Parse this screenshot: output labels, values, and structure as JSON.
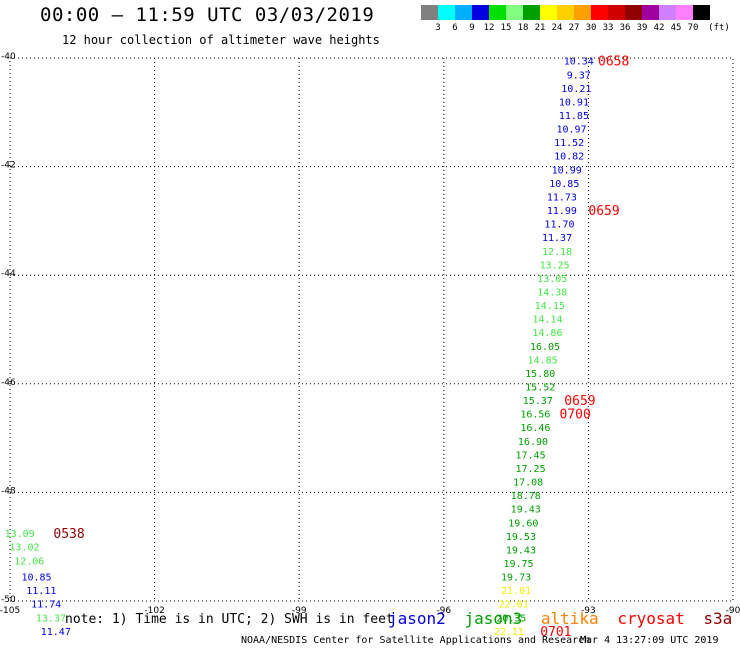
{
  "header": {
    "title": "00:00 – 11:59 UTC 03/03/2019",
    "subtitle": "12 hour collection of altimeter wave heights"
  },
  "color_scale": {
    "ticks": [
      "3",
      "6",
      "9",
      "12",
      "15",
      "18",
      "21",
      "24",
      "27",
      "30",
      "33",
      "36",
      "39",
      "42",
      "45",
      "70"
    ],
    "unit": "(ft)",
    "colors": [
      "#808080",
      "#00ffff",
      "#00b0ff",
      "#0000e0",
      "#00e000",
      "#80ff80",
      "#00a000",
      "#ffff00",
      "#ffd000",
      "#ffa000",
      "#ff0000",
      "#d00000",
      "#900000",
      "#a000a0",
      "#d080ff",
      "#ff80ff",
      "#000000"
    ]
  },
  "footer": {
    "note": "note: 1) Time is in UTC; 2) SWH is in feet",
    "satellites": [
      {
        "name": "jason2",
        "color": "#0000e0"
      },
      {
        "name": "jason3",
        "color": "#00a000"
      },
      {
        "name": "altika",
        "color": "#ff8000"
      },
      {
        "name": "cryosat",
        "color": "#ff0000"
      },
      {
        "name": "s3a",
        "color": "#900000"
      }
    ],
    "credit": "NOAA/NESDIS Center for Satellite Applications and Research",
    "timestamp": "Mar 4 13:27:09 UTC 2019"
  },
  "chart_data": {
    "type": "scatter",
    "title": "00:00 – 11:59 UTC 03/03/2019",
    "xlim": [
      -105,
      -90
    ],
    "ylim": [
      -50,
      -40
    ],
    "x_ticks": [
      -105,
      -102,
      -99,
      -96,
      -93,
      -90
    ],
    "y_ticks": [
      -40,
      -42,
      -44,
      -46,
      -48,
      -50
    ],
    "grid": true,
    "colors": {
      "green": "#00a000",
      "light_green": "#44e844",
      "blue": "#0000e0",
      "yellow": "#f0f000",
      "red": "#ff0000",
      "dark_red": "#900000"
    },
    "points": [
      {
        "x": -93.2,
        "y": -40.05,
        "label": "10.34",
        "color": "blue"
      },
      {
        "x": -93.2,
        "y": -40.3,
        "label": "9.37",
        "color": "blue"
      },
      {
        "x": -93.25,
        "y": -40.55,
        "label": "10.21",
        "color": "blue"
      },
      {
        "x": -93.3,
        "y": -40.8,
        "label": "10.91",
        "color": "blue"
      },
      {
        "x": -93.3,
        "y": -41.05,
        "label": "11.85",
        "color": "blue"
      },
      {
        "x": -93.35,
        "y": -41.3,
        "label": "10.97",
        "color": "blue"
      },
      {
        "x": -93.4,
        "y": -41.55,
        "label": "11.52",
        "color": "blue"
      },
      {
        "x": -93.4,
        "y": -41.8,
        "label": "10.82",
        "color": "blue"
      },
      {
        "x": -93.45,
        "y": -42.05,
        "label": "10.99",
        "color": "blue"
      },
      {
        "x": -93.5,
        "y": -42.3,
        "label": "10.85",
        "color": "blue"
      },
      {
        "x": -93.55,
        "y": -42.55,
        "label": "11.73",
        "color": "blue"
      },
      {
        "x": -93.55,
        "y": -42.8,
        "label": "11.99",
        "color": "blue"
      },
      {
        "x": -93.6,
        "y": -43.05,
        "label": "11.70",
        "color": "blue"
      },
      {
        "x": -93.65,
        "y": -43.3,
        "label": "11.37",
        "color": "blue"
      },
      {
        "x": -93.65,
        "y": -43.55,
        "label": "12.18",
        "color": "light_green"
      },
      {
        "x": -93.7,
        "y": -43.8,
        "label": "13.25",
        "color": "light_green"
      },
      {
        "x": -93.75,
        "y": -44.05,
        "label": "13.05",
        "color": "light_green"
      },
      {
        "x": -93.75,
        "y": -44.3,
        "label": "14.38",
        "color": "light_green"
      },
      {
        "x": -93.8,
        "y": -44.55,
        "label": "14.15",
        "color": "light_green"
      },
      {
        "x": -93.85,
        "y": -44.8,
        "label": "14.14",
        "color": "light_green"
      },
      {
        "x": -93.85,
        "y": -45.05,
        "label": "14.86",
        "color": "light_green"
      },
      {
        "x": -93.9,
        "y": -45.3,
        "label": "16.05",
        "color": "green"
      },
      {
        "x": -93.95,
        "y": -45.55,
        "label": "14.85",
        "color": "light_green"
      },
      {
        "x": -94.0,
        "y": -45.8,
        "label": "15.80",
        "color": "green"
      },
      {
        "x": -94.0,
        "y": -46.05,
        "label": "15.52",
        "color": "green"
      },
      {
        "x": -94.05,
        "y": -46.3,
        "label": "15.37",
        "color": "green"
      },
      {
        "x": -94.1,
        "y": -46.55,
        "label": "16.56",
        "color": "green"
      },
      {
        "x": -94.1,
        "y": -46.8,
        "label": "16.46",
        "color": "green"
      },
      {
        "x": -94.15,
        "y": -47.05,
        "label": "16.90",
        "color": "green"
      },
      {
        "x": -94.2,
        "y": -47.3,
        "label": "17.45",
        "color": "green"
      },
      {
        "x": -94.2,
        "y": -47.55,
        "label": "17.25",
        "color": "green"
      },
      {
        "x": -94.25,
        "y": -47.8,
        "label": "17.08",
        "color": "green"
      },
      {
        "x": -94.3,
        "y": -48.05,
        "label": "18.78",
        "color": "green"
      },
      {
        "x": -94.3,
        "y": -48.3,
        "label": "19.43",
        "color": "green"
      },
      {
        "x": -94.35,
        "y": -48.55,
        "label": "19.60",
        "color": "green"
      },
      {
        "x": -94.4,
        "y": -48.8,
        "label": "19.53",
        "color": "green"
      },
      {
        "x": -94.4,
        "y": -49.05,
        "label": "19.43",
        "color": "green"
      },
      {
        "x": -94.45,
        "y": -49.3,
        "label": "19.75",
        "color": "green"
      },
      {
        "x": -94.5,
        "y": -49.55,
        "label": "19.73",
        "color": "green"
      },
      {
        "x": -94.5,
        "y": -49.8,
        "label": "21.01",
        "color": "yellow"
      },
      {
        "x": -94.55,
        "y": -50.05,
        "label": "22.01",
        "color": "yellow"
      },
      {
        "x": -94.6,
        "y": -50.3,
        "label": "20.35",
        "color": "green"
      },
      {
        "x": -94.65,
        "y": -50.55,
        "label": "22.11",
        "color": "yellow"
      },
      {
        "x": -104.8,
        "y": -48.75,
        "label": "13.09",
        "color": "light_green"
      },
      {
        "x": -104.7,
        "y": -49.0,
        "label": "13.02",
        "color": "light_green"
      },
      {
        "x": -104.6,
        "y": -49.25,
        "label": "12.06",
        "color": "light_green"
      },
      {
        "x": -104.45,
        "y": -49.55,
        "label": "10.85",
        "color": "blue"
      },
      {
        "x": -104.35,
        "y": -49.8,
        "label": "11.11",
        "color": "blue"
      },
      {
        "x": -104.25,
        "y": -50.05,
        "label": "11.74",
        "color": "blue"
      },
      {
        "x": -104.15,
        "y": -50.3,
        "label": "13.37",
        "color": "light_green"
      },
      {
        "x": -104.05,
        "y": -50.55,
        "label": "11.47",
        "color": "blue"
      }
    ],
    "time_labels": [
      {
        "x": -92.8,
        "y": -40.05,
        "label": "0658",
        "color": "red"
      },
      {
        "x": -93.0,
        "y": -42.8,
        "label": "0659",
        "color": "red"
      },
      {
        "x": -93.5,
        "y": -46.3,
        "label": "0659",
        "color": "red"
      },
      {
        "x": -93.6,
        "y": -46.55,
        "label": "0700",
        "color": "red"
      },
      {
        "x": -94.0,
        "y": -50.55,
        "label": "0701",
        "color": "red"
      },
      {
        "x": -104.1,
        "y": -48.75,
        "label": "0538",
        "color": "dark_red"
      }
    ]
  }
}
